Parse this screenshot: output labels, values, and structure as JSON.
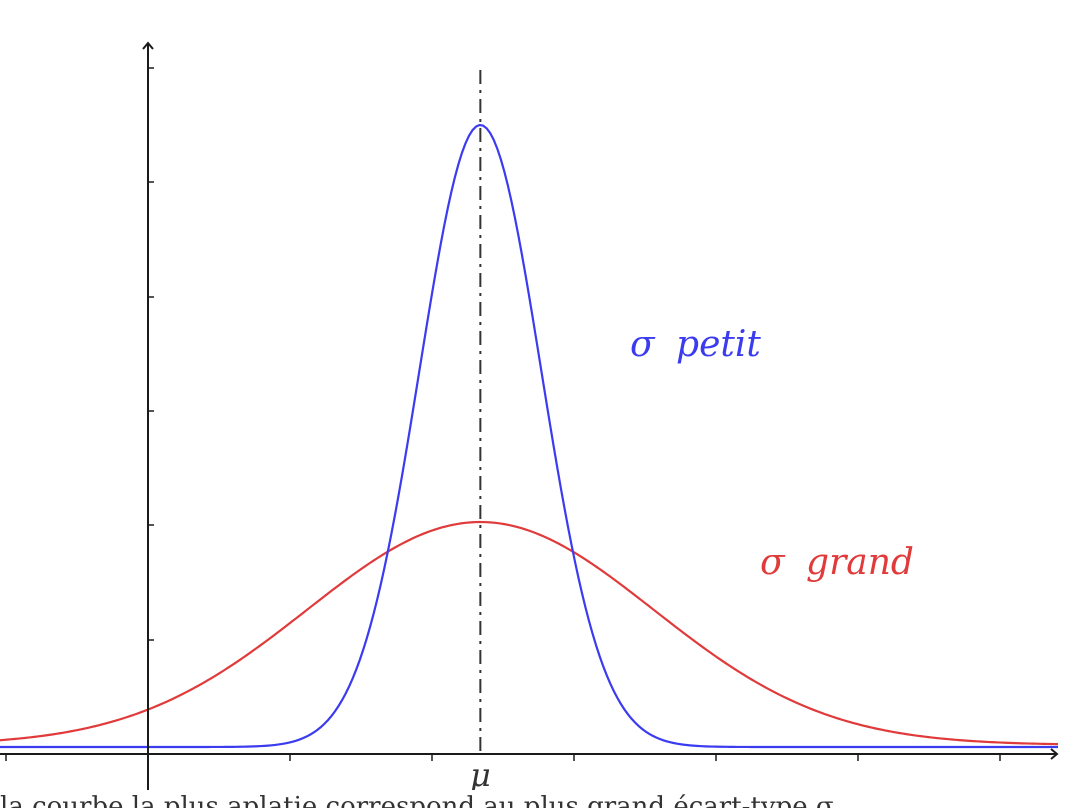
{
  "chart_data": {
    "type": "line",
    "title": "",
    "xlabel": "",
    "ylabel": "",
    "grid": false,
    "legend": "none",
    "x_tick_labels": [
      {
        "x": 0,
        "label": "μ"
      }
    ],
    "xlim": [
      -7.9,
      9.5
    ],
    "ylim": [
      0,
      1.4
    ],
    "series": [
      {
        "name": "σ petit",
        "label_symbol": "σ",
        "label_word": "petit",
        "color": "#3b3bf0",
        "distribution": "normal",
        "mean": 0,
        "sigma": 1,
        "peak": 1.14
      },
      {
        "name": "σ grand",
        "label_symbol": "σ",
        "label_word": "grand",
        "color": "#e03a3a",
        "distribution": "normal",
        "mean": 0,
        "sigma": 2.85,
        "peak": 0.41
      }
    ],
    "mean_line": {
      "x": 0,
      "style": "dash-dot"
    }
  },
  "caption_fragment": "la courbe la plus aplatie correspond au plus grand écart-type σ"
}
